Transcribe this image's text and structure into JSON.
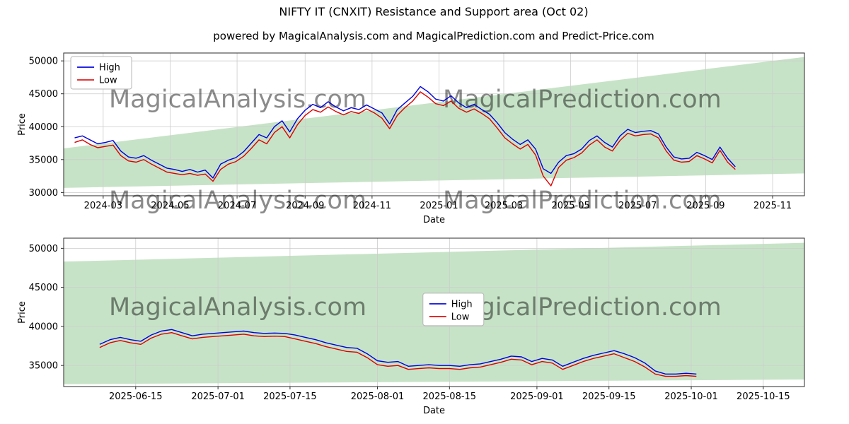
{
  "title": "NIFTY IT (CNXIT) Resistance and Support area (Oct 02)",
  "subtitle": "powered by MagicalAnalysis.com and MagicalPrediction.com and Predict-Price.com",
  "colors": {
    "high": "#0000dd",
    "low": "#dd0000",
    "band": "rgba(0,128,0,0.22)",
    "grid": "#cccccc",
    "spine": "#2b2b2b",
    "tick_text": "#1a1a1a",
    "watermark": "#9a9a9a"
  },
  "chart_data": [
    {
      "type": "line",
      "ylabel": "Price",
      "xlabel": "Date",
      "grid": true,
      "xlim": [
        25,
        700
      ],
      "ylim": [
        29500,
        51200
      ],
      "yticks": [
        30000,
        35000,
        40000,
        45000,
        50000
      ],
      "xticks": [
        {
          "v": 61,
          "label": "2024-03"
        },
        {
          "v": 122,
          "label": "2024-05"
        },
        {
          "v": 183,
          "label": "2024-07"
        },
        {
          "v": 245,
          "label": "2024-09"
        },
        {
          "v": 306,
          "label": "2024-11"
        },
        {
          "v": 367,
          "label": "2025-01"
        },
        {
          "v": 426,
          "label": "2025-03"
        },
        {
          "v": 487,
          "label": "2025-05"
        },
        {
          "v": 548,
          "label": "2025-07"
        },
        {
          "v": 610,
          "label": "2025-09"
        },
        {
          "v": 671,
          "label": "2025-11"
        }
      ],
      "x_start": 35,
      "x_step": 7,
      "series": [
        {
          "name": "High",
          "color_key": "high",
          "values": [
            38300,
            38600,
            38000,
            37400,
            37600,
            37900,
            36300,
            35400,
            35200,
            35600,
            34900,
            34300,
            33700,
            33500,
            33200,
            33500,
            33100,
            33400,
            32200,
            34300,
            34900,
            35300,
            36200,
            37500,
            38800,
            38300,
            40000,
            40900,
            39200,
            41200,
            42500,
            43400,
            42900,
            43800,
            43000,
            42400,
            42900,
            42600,
            43300,
            42700,
            42100,
            40400,
            42600,
            43600,
            44600,
            46100,
            45300,
            44200,
            43900,
            44700,
            43600,
            42900,
            43400,
            42600,
            41900,
            40600,
            39100,
            38100,
            37300,
            38000,
            36600,
            33600,
            32900,
            34600,
            35600,
            35900,
            36600,
            37900,
            38600,
            37600,
            36900,
            38600,
            39600,
            39100,
            39300,
            39400,
            38900,
            36900,
            35400,
            35100,
            35200,
            36100,
            35600,
            35000,
            36900,
            35200,
            33900
          ]
        },
        {
          "name": "Low",
          "color_key": "low",
          "values": [
            37600,
            38000,
            37300,
            36800,
            37000,
            37200,
            35600,
            34800,
            34600,
            35000,
            34300,
            33700,
            33100,
            32900,
            32700,
            32900,
            32600,
            32800,
            31700,
            33500,
            34300,
            34700,
            35500,
            36700,
            38000,
            37400,
            39100,
            40000,
            38300,
            40300,
            41700,
            42600,
            42200,
            43000,
            42300,
            41800,
            42300,
            42000,
            42700,
            42100,
            41300,
            39700,
            41700,
            42900,
            43900,
            45300,
            44500,
            43500,
            43200,
            43900,
            42800,
            42200,
            42700,
            42000,
            41200,
            39800,
            38300,
            37400,
            36600,
            37300,
            35700,
            32500,
            31000,
            33800,
            34900,
            35300,
            36000,
            37200,
            38000,
            36900,
            36300,
            37900,
            39000,
            38600,
            38800,
            38900,
            38300,
            36300,
            34900,
            34600,
            34700,
            35600,
            35100,
            34500,
            36400,
            34600,
            33500
          ]
        }
      ],
      "band": {
        "x": [
          25,
          700
        ],
        "top": [
          36700,
          50600
        ],
        "bottom": [
          30700,
          32900
        ]
      },
      "legend": {
        "fx": 0.0096,
        "fy": 0.025
      },
      "watermarks": [
        {
          "fx": 0.235,
          "fy": 0.381,
          "text": "MagicalAnalysis.com"
        },
        {
          "fx": 0.7,
          "fy": 0.381,
          "text": "MagicalPrediction.com"
        },
        {
          "fx": 0.235,
          "fy": 1.09,
          "text": "MagicalAnalysis.com"
        },
        {
          "fx": 0.7,
          "fy": 1.09,
          "text": "MagicalPrediction.com"
        }
      ]
    },
    {
      "type": "line",
      "ylabel": "Price",
      "xlabel": "Date",
      "grid": true,
      "xlim": [
        152,
        296
      ],
      "ylim": [
        32300,
        51300
      ],
      "yticks": [
        35000,
        40000,
        45000,
        50000
      ],
      "xticks": [
        {
          "v": 166,
          "label": "2025-06-15"
        },
        {
          "v": 182,
          "label": "2025-07-01"
        },
        {
          "v": 196,
          "label": "2025-07-15"
        },
        {
          "v": 213,
          "label": "2025-08-01"
        },
        {
          "v": 227,
          "label": "2025-08-15"
        },
        {
          "v": 244,
          "label": "2025-09-01"
        },
        {
          "v": 258,
          "label": "2025-09-15"
        },
        {
          "v": 274,
          "label": "2025-10-01"
        },
        {
          "v": 288,
          "label": "2025-10-15"
        }
      ],
      "x_start": 159,
      "x_step": 2,
      "series": [
        {
          "name": "High",
          "color_key": "high",
          "values": [
            37700,
            38300,
            38600,
            38300,
            38100,
            38900,
            39400,
            39600,
            39200,
            38800,
            39000,
            39100,
            39200,
            39300,
            39400,
            39200,
            39100,
            39150,
            39100,
            38900,
            38600,
            38300,
            37900,
            37600,
            37300,
            37200,
            36500,
            35600,
            35400,
            35500,
            34900,
            35000,
            35100,
            35000,
            35000,
            34900,
            35100,
            35200,
            35500,
            35800,
            36200,
            36100,
            35500,
            35900,
            35700,
            34900,
            35400,
            35900,
            36300,
            36600,
            36900,
            36500,
            36000,
            35300,
            34300,
            33900,
            33900,
            34000,
            33900
          ]
        },
        {
          "name": "Low",
          "color_key": "low",
          "values": [
            37300,
            37900,
            38200,
            37900,
            37700,
            38500,
            39000,
            39200,
            38800,
            38400,
            38600,
            38700,
            38800,
            38900,
            39000,
            38800,
            38700,
            38750,
            38700,
            38400,
            38100,
            37800,
            37400,
            37100,
            36800,
            36700,
            36000,
            35100,
            34900,
            35000,
            34500,
            34600,
            34700,
            34600,
            34600,
            34500,
            34700,
            34800,
            35100,
            35400,
            35800,
            35700,
            35100,
            35500,
            35300,
            34500,
            35000,
            35500,
            35900,
            36200,
            36500,
            36000,
            35500,
            34800,
            33900,
            33600,
            33600,
            33700,
            33600
          ]
        }
      ],
      "band": {
        "x": [
          152,
          296
        ],
        "top": [
          48300,
          50700
        ],
        "bottom": [
          32600,
          33200
        ]
      },
      "legend": {
        "fx": 0.485,
        "fy": 0.371
      },
      "watermarks": [
        {
          "fx": 0.235,
          "fy": 0.52,
          "text": "MagicalAnalysis.com"
        },
        {
          "fx": 0.7,
          "fy": 0.52,
          "text": "MagicalPrediction.com"
        }
      ]
    }
  ]
}
